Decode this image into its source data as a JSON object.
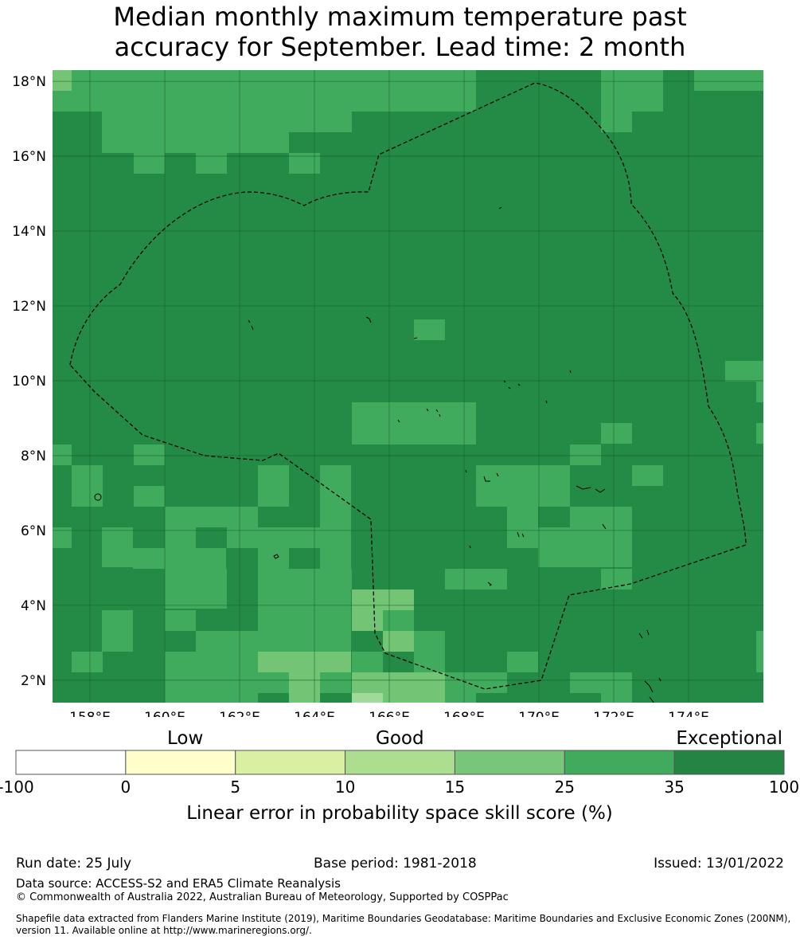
{
  "title": {
    "line1": "Median monthly maximum temperature past",
    "line2": "accuracy for September. Lead time: 2 month"
  },
  "map": {
    "lon_range": [
      157.0,
      176.0
    ],
    "lat_range": [
      1.4,
      18.3
    ],
    "lon_ticks": [
      "158°E",
      "160°E",
      "162°E",
      "164°E",
      "166°E",
      "168°E",
      "170°E",
      "172°E",
      "174°E"
    ],
    "lat_ticks": [
      "2°N",
      "4°N",
      "6°N",
      "8°N",
      "10°N",
      "12°N",
      "14°N",
      "16°N",
      "18°N"
    ],
    "grid": true,
    "boundary_style": "dashed",
    "skill_field_values": [
      35,
      25,
      15,
      10
    ],
    "skill_field_colors": {
      "exceptional": "#238b45",
      "high": "#41ab5d",
      "mid": "#74c476",
      "low": "#a1d99b",
      "lowest": "#c7e9c0"
    }
  },
  "colorbar": {
    "category_labels": [
      "Low",
      "Good",
      "Exceptional"
    ],
    "bounds": [
      "-100",
      "0",
      "5",
      "10",
      "15",
      "25",
      "35",
      "100"
    ],
    "colors": [
      "#ffffff",
      "#ffffcc",
      "#d9f0a3",
      "#addd8e",
      "#78c679",
      "#41ab5d",
      "#238443"
    ],
    "label": "Linear error in probability space skill score (%)"
  },
  "footer": {
    "run_date": "Run date: 25 July",
    "base_period": "Base period: 1981-2018",
    "issued": "Issued: 13/01/2022",
    "data_source": "Data source: ACCESS-S2 and ERA5 Climate Reanalysis",
    "copyright": "© Commonwealth of Australia 2022, Australian Bureau of Meteorology, Supported by COSPPac",
    "shapefile": "Shapefile data extracted from Flanders Marine Institute (2019), Maritime Boundaries Geodatabase: Maritime Boundaries and Exclusive Economic Zones (200NM), version 11. Available online at http://www.marineregions.org/."
  }
}
